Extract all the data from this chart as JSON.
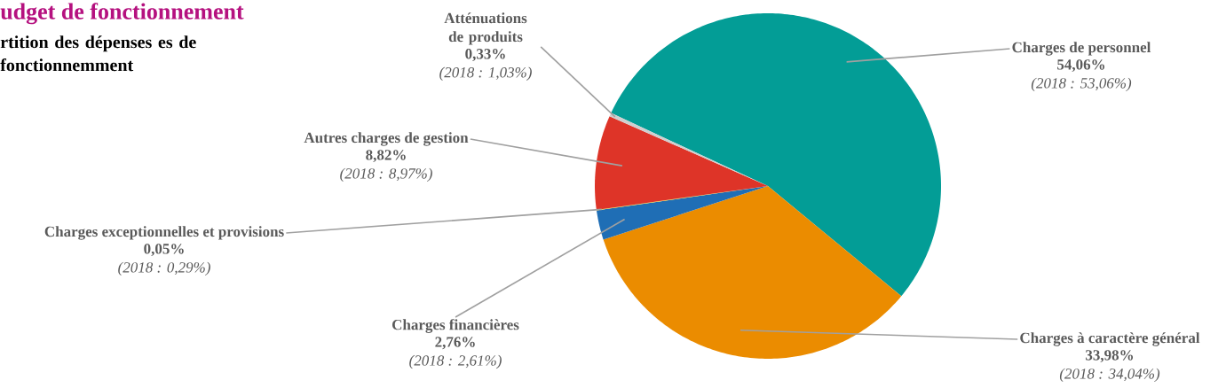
{
  "chart_data": {
    "type": "pie",
    "title": "udget de fonctionnement",
    "subtitle": "rtition des dépenses es de fonctionnemment",
    "categories": [
      "Charges de personnel",
      "Charges à caractère général",
      "Charges financières",
      "Charges exceptionnelles et provisions",
      "Autres charges de gestion",
      "Atténuations de produits"
    ],
    "values": [
      54.06,
      33.98,
      2.76,
      0.05,
      8.82,
      0.33
    ],
    "colors": [
      "#039d96",
      "#eb8c00",
      "#1f6eb5",
      "#f2e41b",
      "#de3428",
      "#cfcfcf"
    ],
    "value_labels": [
      "54,06%",
      "33,98%",
      "2,76%",
      "0,05%",
      "8,82%",
      "0,33%"
    ],
    "annotations": [
      "(2018 : 53,06%)",
      "(2018 : 34,04%)",
      "(2018 : 2,61%)",
      "(2018 : 0,29%)",
      "(2018 : 8,97%)",
      "(2018 : 1,03%)"
    ]
  }
}
